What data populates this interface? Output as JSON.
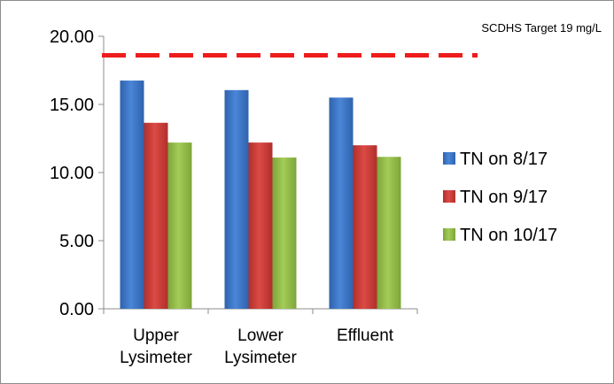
{
  "chart_data": {
    "type": "bar",
    "categories": [
      [
        "Upper",
        "Lysimeter"
      ],
      [
        "Lower",
        "Lysimeter"
      ],
      [
        "Effluent"
      ]
    ],
    "series": [
      {
        "name": "TN on 8/17",
        "values": [
          16.75,
          16.05,
          15.5
        ],
        "color": "#3d77c9"
      },
      {
        "name": "TN on 9/17",
        "values": [
          13.65,
          12.2,
          12.0
        ],
        "color": "#cc3c38"
      },
      {
        "name": "TN on 10/17",
        "values": [
          12.2,
          11.1,
          11.15
        ],
        "color": "#93bd48"
      }
    ],
    "yticks": [
      "0.00",
      "5.00",
      "10.00",
      "15.00",
      "20.00"
    ],
    "ylim": [
      0,
      20
    ],
    "legend_position": "right",
    "reference_line": {
      "label": "SCDHS Target 19 mg/L",
      "value": 18.6,
      "color": "#ee1c1c",
      "style": "dashed"
    }
  }
}
